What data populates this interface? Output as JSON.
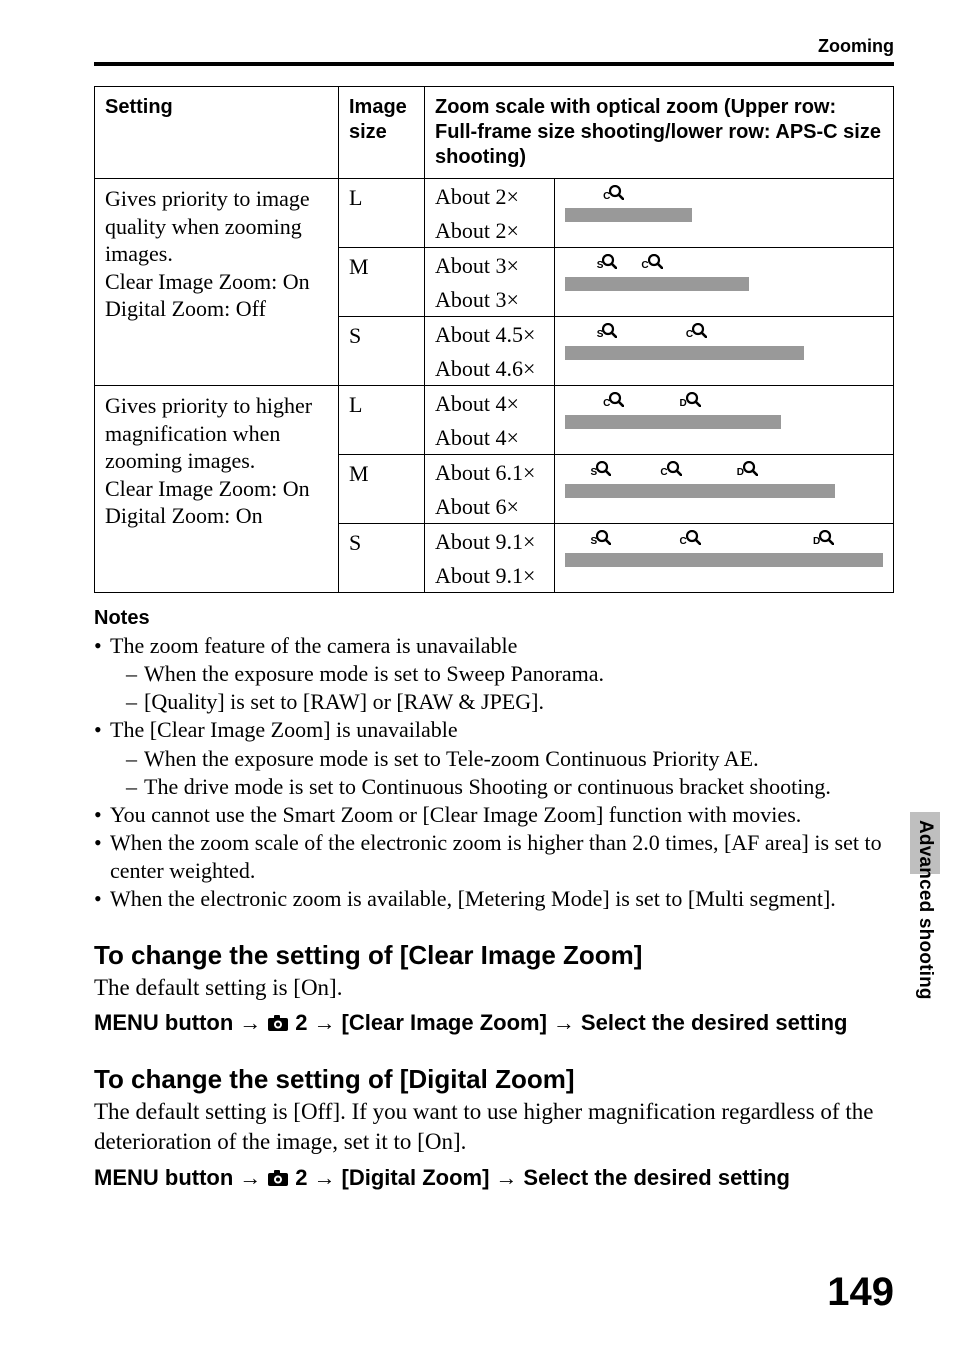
{
  "header": {
    "section": "Zooming"
  },
  "table": {
    "headers": {
      "setting": "Setting",
      "size": "Image size",
      "scale": "Zoom scale with optical zoom (Upper row: Full-frame size shooting/lower row: APS-C size shooting)"
    },
    "groups": [
      {
        "setting": "Gives priority to image quality when zooming images.\nClear Image Zoom: On\nDigital Zoom: Off",
        "rows": [
          {
            "size": "L",
            "upper": "About 2×",
            "lower": "About 2×",
            "bar_width_pct": 40,
            "icons": [
              {
                "label": "C",
                "pos_pct": 12
              }
            ]
          },
          {
            "size": "M",
            "upper": "About 3×",
            "lower": "About 3×",
            "bar_width_pct": 58,
            "icons": [
              {
                "label": "S",
                "pos_pct": 10
              },
              {
                "label": "C",
                "pos_pct": 24
              }
            ]
          },
          {
            "size": "S",
            "upper": "About 4.5×",
            "lower": "About 4.6×",
            "bar_width_pct": 75,
            "icons": [
              {
                "label": "S",
                "pos_pct": 10
              },
              {
                "label": "C",
                "pos_pct": 38
              }
            ]
          }
        ]
      },
      {
        "setting": "Gives priority to higher magnification when zooming images.\nClear Image Zoom: On\nDigital Zoom: On",
        "rows": [
          {
            "size": "L",
            "upper": "About 4×",
            "lower": "About 4×",
            "bar_width_pct": 68,
            "icons": [
              {
                "label": "C",
                "pos_pct": 12
              },
              {
                "label": "D",
                "pos_pct": 36
              }
            ]
          },
          {
            "size": "M",
            "upper": "About 6.1×",
            "lower": "About 6×",
            "bar_width_pct": 85,
            "icons": [
              {
                "label": "S",
                "pos_pct": 8
              },
              {
                "label": "C",
                "pos_pct": 30
              },
              {
                "label": "D",
                "pos_pct": 54
              }
            ]
          },
          {
            "size": "S",
            "upper": "About 9.1×",
            "lower": "About 9.1×",
            "bar_width_pct": 100,
            "icons": [
              {
                "label": "S",
                "pos_pct": 8
              },
              {
                "label": "C",
                "pos_pct": 36
              },
              {
                "label": "D",
                "pos_pct": 78
              }
            ]
          }
        ]
      }
    ],
    "bar_color": "#999999"
  },
  "notes": {
    "heading": "Notes",
    "items": [
      {
        "text": "The zoom feature of the camera is unavailable",
        "sub": [
          "When the exposure mode is set to Sweep Panorama.",
          "[Quality] is set to [RAW] or [RAW & JPEG]."
        ]
      },
      {
        "text": "The [Clear Image Zoom] is unavailable",
        "sub": [
          "When the exposure mode is set to Tele-zoom Continuous Priority AE.",
          "The drive mode is set to Continuous Shooting or continuous bracket shooting."
        ]
      },
      {
        "text": "You cannot use the Smart Zoom or [Clear Image Zoom] function with movies."
      },
      {
        "text": "When the zoom scale of the electronic zoom is higher than 2.0 times, [AF area] is set to center weighted."
      },
      {
        "text": "When the electronic zoom is available, [Metering Mode] is set to [Multi segment]."
      }
    ]
  },
  "sections": [
    {
      "title": "To change the setting of [Clear Image Zoom]",
      "body": "The default setting is [On].",
      "path": {
        "prefix": "MENU button",
        "num": "2",
        "item": "[Clear Image Zoom]",
        "tail": "Select the desired setting"
      }
    },
    {
      "title": "To change the setting of [Digital Zoom]",
      "body": "The default setting is [Off]. If you want to use higher magnification regardless of the deterioration of the image, set it to [On].",
      "path": {
        "prefix": "MENU button",
        "num": "2",
        "item": "[Digital Zoom]",
        "tail": "Select the desired setting"
      }
    }
  ],
  "side_tab": "Advanced shooting",
  "page_number": "149",
  "glyphs": {
    "arrow": "→"
  }
}
